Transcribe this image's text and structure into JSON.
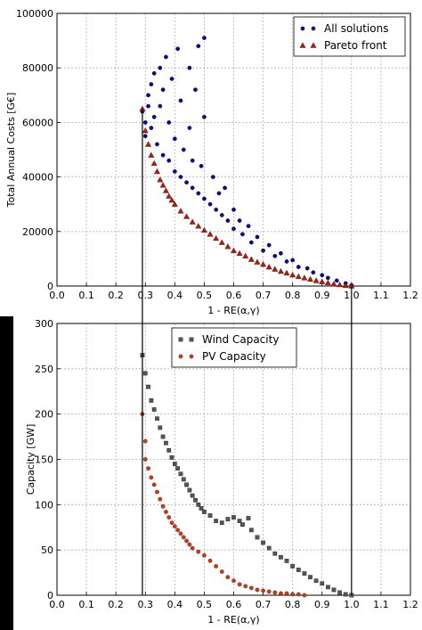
{
  "colors": {
    "all_solutions": "#0b0b8a",
    "pareto_front": "#b11c0e",
    "wind": "#555555",
    "pv": "#cc3a1a",
    "grid": "#b0b0b0",
    "background_strip": "#000000"
  },
  "chart_data": [
    {
      "type": "scatter",
      "xlabel": "1 - RE(α,γ)",
      "ylabel": "Total Annual Costs [G€]",
      "xlim": [
        0.0,
        1.2
      ],
      "ylim": [
        0,
        100000
      ],
      "x_ticks": [
        "0.0",
        "0.1",
        "0.2",
        "0.3",
        "0.4",
        "0.5",
        "0.6",
        "0.7",
        "0.8",
        "0.9",
        "1.0",
        "1.1",
        "1.2"
      ],
      "y_ticks": [
        "0",
        "20000",
        "40000",
        "60000",
        "80000",
        "100000"
      ],
      "grid": true,
      "legend_position": "top-right",
      "series": [
        {
          "name": "All solutions",
          "marker": "circle",
          "color": "#0b0b8a",
          "points": [
            [
              0.29,
              64000
            ],
            [
              0.3,
              60000
            ],
            [
              0.3,
              55000
            ],
            [
              0.31,
              66000
            ],
            [
              0.31,
              70000
            ],
            [
              0.32,
              74000
            ],
            [
              0.32,
              58000
            ],
            [
              0.33,
              78000
            ],
            [
              0.33,
              62000
            ],
            [
              0.34,
              52000
            ],
            [
              0.35,
              80000
            ],
            [
              0.35,
              66000
            ],
            [
              0.36,
              48000
            ],
            [
              0.36,
              72000
            ],
            [
              0.37,
              84000
            ],
            [
              0.38,
              46000
            ],
            [
              0.38,
              60000
            ],
            [
              0.39,
              76000
            ],
            [
              0.4,
              42000
            ],
            [
              0.4,
              54000
            ],
            [
              0.41,
              87000
            ],
            [
              0.42,
              40000
            ],
            [
              0.42,
              68000
            ],
            [
              0.43,
              50000
            ],
            [
              0.44,
              38000
            ],
            [
              0.45,
              58000
            ],
            [
              0.45,
              80000
            ],
            [
              0.46,
              36000
            ],
            [
              0.46,
              46000
            ],
            [
              0.47,
              72000
            ],
            [
              0.48,
              34000
            ],
            [
              0.48,
              88000
            ],
            [
              0.49,
              44000
            ],
            [
              0.5,
              91000
            ],
            [
              0.5,
              32000
            ],
            [
              0.5,
              62000
            ],
            [
              0.52,
              30000
            ],
            [
              0.53,
              40000
            ],
            [
              0.54,
              28000
            ],
            [
              0.55,
              34000
            ],
            [
              0.56,
              26000
            ],
            [
              0.57,
              36000
            ],
            [
              0.58,
              24000
            ],
            [
              0.6,
              28000
            ],
            [
              0.6,
              21000
            ],
            [
              0.62,
              24000
            ],
            [
              0.63,
              19000
            ],
            [
              0.65,
              22000
            ],
            [
              0.66,
              16000
            ],
            [
              0.68,
              18000
            ],
            [
              0.7,
              13000
            ],
            [
              0.72,
              15000
            ],
            [
              0.74,
              11000
            ],
            [
              0.76,
              12000
            ],
            [
              0.78,
              9000
            ],
            [
              0.8,
              9500
            ],
            [
              0.82,
              7000
            ],
            [
              0.85,
              6500
            ],
            [
              0.87,
              5000
            ],
            [
              0.9,
              4000
            ],
            [
              0.92,
              3000
            ],
            [
              0.95,
              2000
            ],
            [
              0.98,
              1000
            ],
            [
              1.0,
              300
            ]
          ]
        },
        {
          "name": "Pareto front",
          "marker": "triangle",
          "color": "#b11c0e",
          "points": [
            [
              0.29,
              65000
            ],
            [
              0.3,
              57000
            ],
            [
              0.31,
              52000
            ],
            [
              0.32,
              48000
            ],
            [
              0.33,
              45000
            ],
            [
              0.34,
              42000
            ],
            [
              0.35,
              39000
            ],
            [
              0.36,
              37000
            ],
            [
              0.37,
              35000
            ],
            [
              0.38,
              33000
            ],
            [
              0.39,
              31500
            ],
            [
              0.4,
              30000
            ],
            [
              0.42,
              27500
            ],
            [
              0.44,
              25500
            ],
            [
              0.46,
              23500
            ],
            [
              0.48,
              22000
            ],
            [
              0.5,
              20500
            ],
            [
              0.52,
              19000
            ],
            [
              0.54,
              17500
            ],
            [
              0.56,
              16000
            ],
            [
              0.58,
              14500
            ],
            [
              0.6,
              13000
            ],
            [
              0.62,
              12000
            ],
            [
              0.64,
              11000
            ],
            [
              0.66,
              9800
            ],
            [
              0.68,
              8800
            ],
            [
              0.7,
              8000
            ],
            [
              0.72,
              7000
            ],
            [
              0.74,
              6200
            ],
            [
              0.76,
              5400
            ],
            [
              0.78,
              4800
            ],
            [
              0.8,
              4100
            ],
            [
              0.82,
              3500
            ],
            [
              0.84,
              3000
            ],
            [
              0.86,
              2500
            ],
            [
              0.88,
              2000
            ],
            [
              0.9,
              1600
            ],
            [
              0.92,
              1200
            ],
            [
              0.94,
              800
            ],
            [
              0.96,
              500
            ],
            [
              0.98,
              200
            ],
            [
              1.0,
              0
            ]
          ]
        }
      ]
    },
    {
      "type": "scatter",
      "xlabel": "1 - RE(α,γ)",
      "ylabel": "Capacity [GW]",
      "xlim": [
        0.0,
        1.2
      ],
      "ylim": [
        0,
        300
      ],
      "x_ticks": [
        "0.0",
        "0.1",
        "0.2",
        "0.3",
        "0.4",
        "0.5",
        "0.6",
        "0.7",
        "0.8",
        "0.9",
        "1.0",
        "1.1",
        "1.2"
      ],
      "y_ticks": [
        "0",
        "50",
        "100",
        "150",
        "200",
        "250",
        "300"
      ],
      "grid": true,
      "legend_position": "top-center",
      "series": [
        {
          "name": "Wind Capacity",
          "marker": "square",
          "color": "#555555",
          "points": [
            [
              0.29,
              265
            ],
            [
              0.3,
              245
            ],
            [
              0.31,
              230
            ],
            [
              0.32,
              215
            ],
            [
              0.33,
              205
            ],
            [
              0.34,
              195
            ],
            [
              0.35,
              185
            ],
            [
              0.36,
              175
            ],
            [
              0.37,
              168
            ],
            [
              0.38,
              160
            ],
            [
              0.39,
              152
            ],
            [
              0.4,
              145
            ],
            [
              0.41,
              140
            ],
            [
              0.42,
              134
            ],
            [
              0.43,
              128
            ],
            [
              0.44,
              122
            ],
            [
              0.45,
              116
            ],
            [
              0.46,
              110
            ],
            [
              0.47,
              105
            ],
            [
              0.48,
              100
            ],
            [
              0.49,
              96
            ],
            [
              0.5,
              92
            ],
            [
              0.52,
              88
            ],
            [
              0.54,
              82
            ],
            [
              0.56,
              80
            ],
            [
              0.58,
              84
            ],
            [
              0.6,
              86
            ],
            [
              0.62,
              82
            ],
            [
              0.63,
              78
            ],
            [
              0.65,
              85
            ],
            [
              0.66,
              72
            ],
            [
              0.68,
              64
            ],
            [
              0.7,
              58
            ],
            [
              0.72,
              52
            ],
            [
              0.74,
              46
            ],
            [
              0.76,
              42
            ],
            [
              0.78,
              38
            ],
            [
              0.8,
              32
            ],
            [
              0.82,
              28
            ],
            [
              0.84,
              24
            ],
            [
              0.86,
              20
            ],
            [
              0.88,
              16
            ],
            [
              0.9,
              13
            ],
            [
              0.92,
              9
            ],
            [
              0.94,
              6
            ],
            [
              0.96,
              3
            ],
            [
              0.98,
              1
            ],
            [
              1.0,
              0
            ]
          ]
        },
        {
          "name": "PV Capacity",
          "marker": "circle",
          "color": "#cc3a1a",
          "points": [
            [
              0.29,
              200
            ],
            [
              0.3,
              170
            ],
            [
              0.3,
              150
            ],
            [
              0.31,
              140
            ],
            [
              0.32,
              130
            ],
            [
              0.33,
              122
            ],
            [
              0.34,
              114
            ],
            [
              0.35,
              106
            ],
            [
              0.36,
              98
            ],
            [
              0.37,
              92
            ],
            [
              0.38,
              86
            ],
            [
              0.39,
              80
            ],
            [
              0.4,
              76
            ],
            [
              0.41,
              72
            ],
            [
              0.42,
              68
            ],
            [
              0.43,
              64
            ],
            [
              0.44,
              60
            ],
            [
              0.45,
              56
            ],
            [
              0.46,
              52
            ],
            [
              0.48,
              48
            ],
            [
              0.5,
              44
            ],
            [
              0.52,
              38
            ],
            [
              0.54,
              32
            ],
            [
              0.56,
              26
            ],
            [
              0.58,
              20
            ],
            [
              0.6,
              16
            ],
            [
              0.62,
              12
            ],
            [
              0.64,
              10
            ],
            [
              0.66,
              8
            ],
            [
              0.68,
              6
            ],
            [
              0.7,
              5
            ],
            [
              0.72,
              4
            ],
            [
              0.74,
              3
            ],
            [
              0.76,
              2
            ],
            [
              0.78,
              2
            ],
            [
              0.8,
              1
            ],
            [
              0.82,
              1
            ],
            [
              0.84,
              0
            ]
          ]
        }
      ]
    }
  ]
}
